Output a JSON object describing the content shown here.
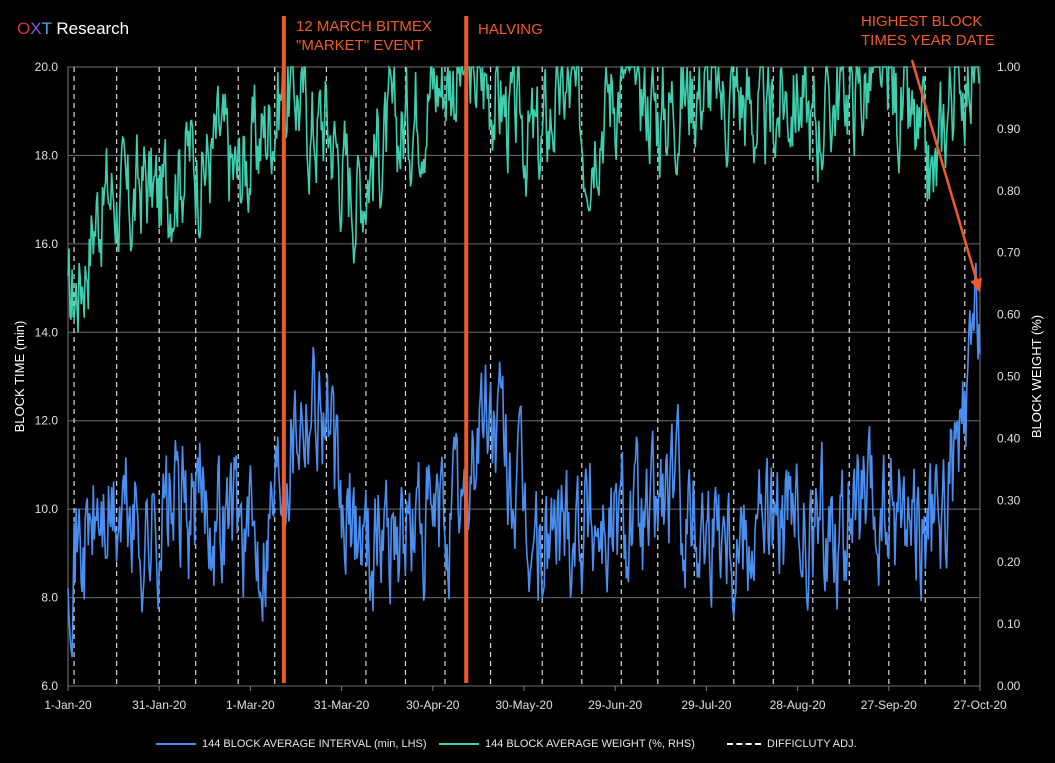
{
  "brand": {
    "o": "O",
    "x": "X",
    "t": "T",
    "rest": " Research"
  },
  "chart_data": {
    "type": "line",
    "xlabel": "",
    "ylabel": "BLOCK TIME (min)",
    "y2label": "BLOCK WEIGHT (%)",
    "ylim": [
      6.0,
      20.0
    ],
    "y2lim": [
      0.0,
      1.0
    ],
    "xlim": [
      "2020-01-01",
      "2020-10-27"
    ],
    "x_ticks": [
      "1-Jan-20",
      "31-Jan-20",
      "1-Mar-20",
      "31-Mar-20",
      "30-Apr-20",
      "30-May-20",
      "29-Jun-20",
      "29-Jul-20",
      "28-Aug-20",
      "27-Sep-20",
      "27-Oct-20"
    ],
    "y_ticks": [
      "6.0",
      "8.0",
      "10.0",
      "12.0",
      "14.0",
      "16.0",
      "18.0",
      "20.0"
    ],
    "y2_ticks": [
      "0.00",
      "0.10",
      "0.20",
      "0.30",
      "0.40",
      "0.50",
      "0.60",
      "0.70",
      "0.80",
      "0.90",
      "1.00"
    ],
    "grid": true,
    "legend_position": "bottom",
    "series": [
      {
        "name": "144 BLOCK AVERAGE INTERVAL (min, LHS)",
        "axis": "left",
        "color": "#4a8ef0",
        "values": [
          {
            "x": "2020-01-01",
            "y": 9.4
          },
          {
            "x": "2020-01-06",
            "y": 9.1
          },
          {
            "x": "2020-01-11",
            "y": 9.8
          },
          {
            "x": "2020-01-16",
            "y": 9.6
          },
          {
            "x": "2020-01-21",
            "y": 9.9
          },
          {
            "x": "2020-01-26",
            "y": 9.3
          },
          {
            "x": "2020-01-31",
            "y": 9.7
          },
          {
            "x": "2020-02-05",
            "y": 10.1
          },
          {
            "x": "2020-02-10",
            "y": 9.8
          },
          {
            "x": "2020-02-15",
            "y": 10.2
          },
          {
            "x": "2020-02-20",
            "y": 9.9
          },
          {
            "x": "2020-02-25",
            "y": 10.0
          },
          {
            "x": "2020-03-01",
            "y": 9.2
          },
          {
            "x": "2020-03-06",
            "y": 9.6
          },
          {
            "x": "2020-03-11",
            "y": 11.2
          },
          {
            "x": "2020-03-16",
            "y": 12.3
          },
          {
            "x": "2020-03-21",
            "y": 12.8
          },
          {
            "x": "2020-03-26",
            "y": 12.2
          },
          {
            "x": "2020-03-31",
            "y": 9.5
          },
          {
            "x": "2020-04-05",
            "y": 9.6
          },
          {
            "x": "2020-04-10",
            "y": 9.3
          },
          {
            "x": "2020-04-15",
            "y": 9.8
          },
          {
            "x": "2020-04-20",
            "y": 9.4
          },
          {
            "x": "2020-04-25",
            "y": 9.6
          },
          {
            "x": "2020-04-30",
            "y": 9.3
          },
          {
            "x": "2020-05-05",
            "y": 9.8
          },
          {
            "x": "2020-05-10",
            "y": 9.9
          },
          {
            "x": "2020-05-15",
            "y": 11.8
          },
          {
            "x": "2020-05-20",
            "y": 12.0
          },
          {
            "x": "2020-05-25",
            "y": 10.9
          },
          {
            "x": "2020-05-30",
            "y": 9.6
          },
          {
            "x": "2020-06-04",
            "y": 8.9
          },
          {
            "x": "2020-06-09",
            "y": 9.5
          },
          {
            "x": "2020-06-14",
            "y": 9.9
          },
          {
            "x": "2020-06-19",
            "y": 9.9
          },
          {
            "x": "2020-06-24",
            "y": 9.8
          },
          {
            "x": "2020-06-29",
            "y": 9.5
          },
          {
            "x": "2020-07-04",
            "y": 10.0
          },
          {
            "x": "2020-07-09",
            "y": 9.4
          },
          {
            "x": "2020-07-14",
            "y": 10.4
          },
          {
            "x": "2020-07-19",
            "y": 10.1
          },
          {
            "x": "2020-07-24",
            "y": 10.0
          },
          {
            "x": "2020-07-29",
            "y": 9.6
          },
          {
            "x": "2020-08-03",
            "y": 10.2
          },
          {
            "x": "2020-08-08",
            "y": 9.5
          },
          {
            "x": "2020-08-13",
            "y": 9.9
          },
          {
            "x": "2020-08-18",
            "y": 9.8
          },
          {
            "x": "2020-08-23",
            "y": 9.5
          },
          {
            "x": "2020-08-28",
            "y": 9.4
          },
          {
            "x": "2020-09-02",
            "y": 9.2
          },
          {
            "x": "2020-09-07",
            "y": 9.8
          },
          {
            "x": "2020-09-12",
            "y": 9.6
          },
          {
            "x": "2020-09-17",
            "y": 9.9
          },
          {
            "x": "2020-09-22",
            "y": 9.5
          },
          {
            "x": "2020-09-27",
            "y": 9.6
          },
          {
            "x": "2020-10-02",
            "y": 10.1
          },
          {
            "x": "2020-10-07",
            "y": 9.7
          },
          {
            "x": "2020-10-12",
            "y": 9.3
          },
          {
            "x": "2020-10-17",
            "y": 10.4
          },
          {
            "x": "2020-10-22",
            "y": 11.6
          },
          {
            "x": "2020-10-27",
            "y": 14.8
          }
        ]
      },
      {
        "name": "144 BLOCK AVERAGE WEIGHT (%, RHS)",
        "axis": "right",
        "color": "#3ecfae",
        "values": [
          {
            "x": "2020-01-01",
            "y": 0.6
          },
          {
            "x": "2020-01-06",
            "y": 0.68
          },
          {
            "x": "2020-01-11",
            "y": 0.78
          },
          {
            "x": "2020-01-16",
            "y": 0.8
          },
          {
            "x": "2020-01-21",
            "y": 0.76
          },
          {
            "x": "2020-01-26",
            "y": 0.82
          },
          {
            "x": "2020-01-31",
            "y": 0.78
          },
          {
            "x": "2020-02-05",
            "y": 0.84
          },
          {
            "x": "2020-02-10",
            "y": 0.86
          },
          {
            "x": "2020-02-15",
            "y": 0.84
          },
          {
            "x": "2020-02-20",
            "y": 0.88
          },
          {
            "x": "2020-02-25",
            "y": 0.82
          },
          {
            "x": "2020-03-01",
            "y": 0.86
          },
          {
            "x": "2020-03-06",
            "y": 0.9
          },
          {
            "x": "2020-03-11",
            "y": 0.96
          },
          {
            "x": "2020-03-16",
            "y": 0.97
          },
          {
            "x": "2020-03-21",
            "y": 0.9
          },
          {
            "x": "2020-03-26",
            "y": 0.92
          },
          {
            "x": "2020-03-31",
            "y": 0.84
          },
          {
            "x": "2020-04-05",
            "y": 0.8
          },
          {
            "x": "2020-04-10",
            "y": 0.86
          },
          {
            "x": "2020-04-15",
            "y": 0.88
          },
          {
            "x": "2020-04-20",
            "y": 0.9
          },
          {
            "x": "2020-04-25",
            "y": 0.95
          },
          {
            "x": "2020-04-30",
            "y": 0.97
          },
          {
            "x": "2020-05-05",
            "y": 0.99
          },
          {
            "x": "2020-05-10",
            "y": 0.99
          },
          {
            "x": "2020-05-15",
            "y": 0.98
          },
          {
            "x": "2020-05-20",
            "y": 0.97
          },
          {
            "x": "2020-05-25",
            "y": 0.92
          },
          {
            "x": "2020-05-30",
            "y": 0.9
          },
          {
            "x": "2020-06-04",
            "y": 0.86
          },
          {
            "x": "2020-06-09",
            "y": 0.94
          },
          {
            "x": "2020-06-14",
            "y": 0.96
          },
          {
            "x": "2020-06-19",
            "y": 0.88
          },
          {
            "x": "2020-06-24",
            "y": 0.94
          },
          {
            "x": "2020-06-29",
            "y": 0.97
          },
          {
            "x": "2020-07-04",
            "y": 0.98
          },
          {
            "x": "2020-07-09",
            "y": 0.96
          },
          {
            "x": "2020-07-14",
            "y": 0.92
          },
          {
            "x": "2020-07-19",
            "y": 0.95
          },
          {
            "x": "2020-07-24",
            "y": 0.97
          },
          {
            "x": "2020-07-29",
            "y": 0.98
          },
          {
            "x": "2020-08-03",
            "y": 0.94
          },
          {
            "x": "2020-08-08",
            "y": 0.96
          },
          {
            "x": "2020-08-13",
            "y": 0.93
          },
          {
            "x": "2020-08-18",
            "y": 0.9
          },
          {
            "x": "2020-08-23",
            "y": 0.95
          },
          {
            "x": "2020-08-28",
            "y": 0.96
          },
          {
            "x": "2020-09-02",
            "y": 0.9
          },
          {
            "x": "2020-09-07",
            "y": 0.94
          },
          {
            "x": "2020-09-12",
            "y": 0.97
          },
          {
            "x": "2020-09-17",
            "y": 0.96
          },
          {
            "x": "2020-09-22",
            "y": 0.98
          },
          {
            "x": "2020-09-27",
            "y": 0.97
          },
          {
            "x": "2020-10-02",
            "y": 0.92
          },
          {
            "x": "2020-10-07",
            "y": 0.86
          },
          {
            "x": "2020-10-12",
            "y": 0.8
          },
          {
            "x": "2020-10-17",
            "y": 0.96
          },
          {
            "x": "2020-10-22",
            "y": 1.0
          },
          {
            "x": "2020-10-27",
            "y": 1.0
          }
        ]
      },
      {
        "name": "DIFFICLUTY ADJ.",
        "type": "vline",
        "color": "#ffffff",
        "values": [
          "2020-01-03",
          "2020-01-17",
          "2020-01-31",
          "2020-02-12",
          "2020-02-26",
          "2020-03-09",
          "2020-03-26",
          "2020-04-08",
          "2020-04-21",
          "2020-05-04",
          "2020-05-19",
          "2020-06-05",
          "2020-06-18",
          "2020-07-01",
          "2020-07-13",
          "2020-07-25",
          "2020-08-07",
          "2020-08-20",
          "2020-09-02",
          "2020-09-14",
          "2020-09-27",
          "2020-10-09",
          "2020-10-22"
        ]
      }
    ],
    "events": [
      {
        "x": "2020-03-12",
        "label": "12 MARCH BITMEX\n\"MARKET\" EVENT",
        "color": "#f05a28"
      },
      {
        "x": "2020-05-11",
        "label": "HALVING",
        "color": "#f05a28"
      }
    ],
    "annotations": [
      {
        "label": "HIGHEST BLOCK\nTIMES YEAR DATE",
        "points_to": {
          "x": "2020-10-27",
          "y": 14.8
        },
        "color": "#f05a28"
      }
    ]
  }
}
